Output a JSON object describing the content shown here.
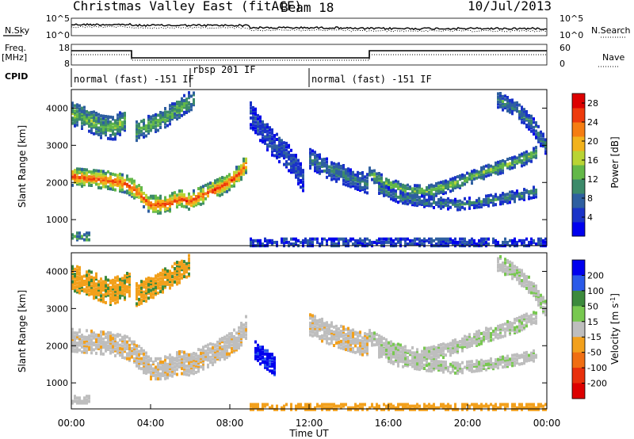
{
  "title": {
    "station": "Christmas Valley East (fitACF)",
    "beam": "Beam 18",
    "date": "10/Jul/2013"
  },
  "param_panels": {
    "nsky_label": "N.Sky",
    "nsky_ticks": [
      "10^5",
      "10^0"
    ],
    "nsearch_label": "N.Search",
    "nsearch_ticks": [
      "10^5",
      "10^0"
    ],
    "freq_label": "Freq.",
    "freq_unit": "[MHz]",
    "freq_ticks": [
      "18",
      "8"
    ],
    "nave_label": "Nave",
    "nave_ticks": [
      "60",
      "0"
    ],
    "cpid_label": "CPID",
    "cpid_segments": [
      {
        "start_hr": 0.0,
        "end_hr": 6.0,
        "text": "normal (fast) -151 IF"
      },
      {
        "start_hr": 6.0,
        "end_hr": 12.0,
        "text": "rbsp 201 IF"
      },
      {
        "start_hr": 12.0,
        "end_hr": 24.0,
        "text": "normal (fast) -151 IF"
      }
    ]
  },
  "chart_data": [
    {
      "type": "heatmap",
      "name": "power",
      "xlabel": "",
      "ylabel": "Slant Range [km]",
      "xlim": [
        0,
        24
      ],
      "ylim": [
        300,
        4500
      ],
      "yticks": [
        {
          "value": 1000,
          "label": "1000"
        },
        {
          "value": 2000,
          "label": "2000"
        },
        {
          "value": 3000,
          "label": "3000"
        },
        {
          "value": 4000,
          "label": "4000"
        }
      ],
      "colorbar": {
        "label": "Power [dB]",
        "ticks": [
          "4",
          "8",
          "12",
          "16",
          "20",
          "24",
          "28"
        ],
        "range": [
          0,
          30
        ],
        "colors": [
          "#0000ee",
          "#1a33c8",
          "#2e5fa0",
          "#3c8a6a",
          "#63b848",
          "#b9d434",
          "#f2b21c",
          "#f67d12",
          "#ee3a0c",
          "#dd0000"
        ]
      },
      "bands": [
        {
          "points": [
            [
              0,
              2200
            ],
            [
              1,
              2150
            ],
            [
              2,
              2100
            ],
            [
              2.8,
              2000
            ],
            [
              3.2,
              1850
            ],
            [
              4,
              1450
            ],
            [
              4.7,
              1450
            ],
            [
              5.5,
              1600
            ],
            [
              6,
              1550
            ],
            [
              7,
              1800
            ],
            [
              7.8,
              2000
            ],
            [
              8.5,
              2300
            ],
            [
              8.9,
              2600
            ]
          ],
          "width": 230,
          "core": 25,
          "edge": 10
        },
        {
          "points": [
            [
              0,
              3900
            ],
            [
              0.8,
              3750
            ],
            [
              1.5,
              3550
            ],
            [
              2.2,
              3500
            ],
            [
              2.8,
              3800
            ]
          ],
          "width": 300,
          "core": 14,
          "edge": 6
        },
        {
          "points": [
            [
              3.2,
              3400
            ],
            [
              4,
              3600
            ],
            [
              4.8,
              3800
            ],
            [
              5.6,
              4100
            ],
            [
              6.2,
              4300
            ]
          ],
          "width": 250,
          "core": 13,
          "edge": 6
        },
        {
          "points": [
            [
              9,
              3900
            ],
            [
              10,
              3200
            ],
            [
              11,
              2700
            ],
            [
              11.8,
              2100
            ]
          ],
          "width": 350,
          "core": 6,
          "edge": 3
        },
        {
          "points": [
            [
              12,
              2700
            ],
            [
              13,
              2400
            ],
            [
              14,
              2200
            ],
            [
              15,
              2000
            ]
          ],
          "width": 250,
          "core": 10,
          "edge": 4
        },
        {
          "points": [
            [
              15,
              2300
            ],
            [
              16,
              2000
            ],
            [
              17,
              1820
            ],
            [
              18,
              1800
            ],
            [
              19,
              1950
            ],
            [
              20,
              2150
            ],
            [
              21,
              2350
            ],
            [
              22.5,
              2600
            ],
            [
              23.5,
              2850
            ]
          ],
          "width": 170,
          "core": 14,
          "edge": 5
        },
        {
          "points": [
            [
              15.5,
              1900
            ],
            [
              16.5,
              1650
            ],
            [
              18,
              1520
            ],
            [
              19.5,
              1450
            ],
            [
              21,
              1550
            ],
            [
              22.5,
              1680
            ],
            [
              23.5,
              1800
            ]
          ],
          "width": 140,
          "core": 10,
          "edge": 4
        },
        {
          "points": [
            [
              21.5,
              4300
            ],
            [
              22.5,
              4000
            ],
            [
              23.3,
              3600
            ],
            [
              24,
              3000
            ]
          ],
          "width": 220,
          "core": 10,
          "edge": 4
        }
      ],
      "ground_scatter": [
        {
          "start_hr": 0.0,
          "end_hr": 1.0,
          "range_km": 600,
          "width": 200,
          "value": 10
        },
        {
          "start_hr": 9.0,
          "end_hr": 24.0,
          "range_km": 430,
          "width": 180,
          "value": 5
        }
      ]
    },
    {
      "type": "heatmap",
      "name": "velocity",
      "xlabel": "Time UT",
      "ylabel": "Slant Range [km]",
      "xlim": [
        0,
        24
      ],
      "ylim": [
        300,
        4500
      ],
      "xticks": [
        {
          "value": 0,
          "label": "00:00"
        },
        {
          "value": 4,
          "label": "04:00"
        },
        {
          "value": 8,
          "label": "08:00"
        },
        {
          "value": 12,
          "label": "12:00"
        },
        {
          "value": 16,
          "label": "16:00"
        },
        {
          "value": 20,
          "label": "20:00"
        },
        {
          "value": 24,
          "label": "00:00"
        }
      ],
      "yticks": [
        {
          "value": 1000,
          "label": "1000"
        },
        {
          "value": 2000,
          "label": "2000"
        },
        {
          "value": 3000,
          "label": "3000"
        },
        {
          "value": 4000,
          "label": "4000"
        }
      ],
      "colorbar": {
        "label": "Velocity [m s^-1]",
        "ticks": [
          "200",
          "100",
          "50",
          "15",
          "-15",
          "-50",
          "-100",
          "-200"
        ],
        "colors": [
          "#0000ee",
          "#2b5ae8",
          "#3c8a3c",
          "#78c850",
          "#bebebe",
          "#f2a01c",
          "#f06e12",
          "#e8300c",
          "#dd0000"
        ]
      },
      "regions": [
        {
          "points": [
            [
              0,
              2200
            ],
            [
              1,
              2150
            ],
            [
              2,
              2100
            ],
            [
              2.8,
              2000
            ],
            [
              3.2,
              1850
            ],
            [
              4,
              1450
            ],
            [
              4.7,
              1450
            ],
            [
              5.5,
              1600
            ],
            [
              6,
              1550
            ],
            [
              7,
              1800
            ],
            [
              7.8,
              2000
            ],
            [
              8.5,
              2300
            ],
            [
              8.9,
              2600
            ]
          ],
          "width": 300,
          "class": "-15",
          "alt": "-50"
        },
        {
          "points": [
            [
              0,
              3900
            ],
            [
              1,
              3700
            ],
            [
              2,
              3500
            ],
            [
              3,
              3700
            ]
          ],
          "width": 350,
          "class": "-50",
          "alt": "50"
        },
        {
          "points": [
            [
              3.2,
              3400
            ],
            [
              4,
              3600
            ],
            [
              5,
              3900
            ],
            [
              6,
              4200
            ]
          ],
          "width": 300,
          "class": "-50",
          "alt": "50"
        },
        {
          "points": [
            [
              9.3,
              1900
            ],
            [
              9.8,
              1700
            ],
            [
              10.3,
              1500
            ]
          ],
          "width": 250,
          "class": "200",
          "alt": "100"
        },
        {
          "points": [
            [
              15,
              2300
            ],
            [
              16,
              2000
            ],
            [
              17,
              1820
            ],
            [
              18,
              1800
            ],
            [
              19,
              1950
            ],
            [
              20,
              2150
            ],
            [
              21,
              2350
            ],
            [
              22.5,
              2600
            ],
            [
              23.5,
              2850
            ]
          ],
          "width": 190,
          "class": "-15",
          "alt": "15"
        },
        {
          "points": [
            [
              15.5,
              1900
            ],
            [
              16.5,
              1650
            ],
            [
              18,
              1520
            ],
            [
              19.5,
              1450
            ],
            [
              21,
              1550
            ],
            [
              22.5,
              1680
            ],
            [
              23.5,
              1800
            ]
          ],
          "width": 150,
          "class": "-15",
          "alt": "15"
        },
        {
          "points": [
            [
              12,
              2600
            ],
            [
              13.5,
              2300
            ],
            [
              15,
              2050
            ]
          ],
          "width": 300,
          "class": "-15",
          "alt": "-50"
        },
        {
          "points": [
            [
              21.5,
              4300
            ],
            [
              22.5,
              4000
            ],
            [
              23.3,
              3600
            ],
            [
              24,
              3000
            ]
          ],
          "width": 220,
          "class": "-15",
          "alt": "15"
        }
      ],
      "ground_scatter": [
        {
          "start_hr": 0.0,
          "end_hr": 1.0,
          "range_km": 600,
          "width": 200,
          "class": "-15"
        },
        {
          "start_hr": 9.0,
          "end_hr": 24.0,
          "range_km": 400,
          "width": 150,
          "class": "-50"
        }
      ]
    }
  ]
}
